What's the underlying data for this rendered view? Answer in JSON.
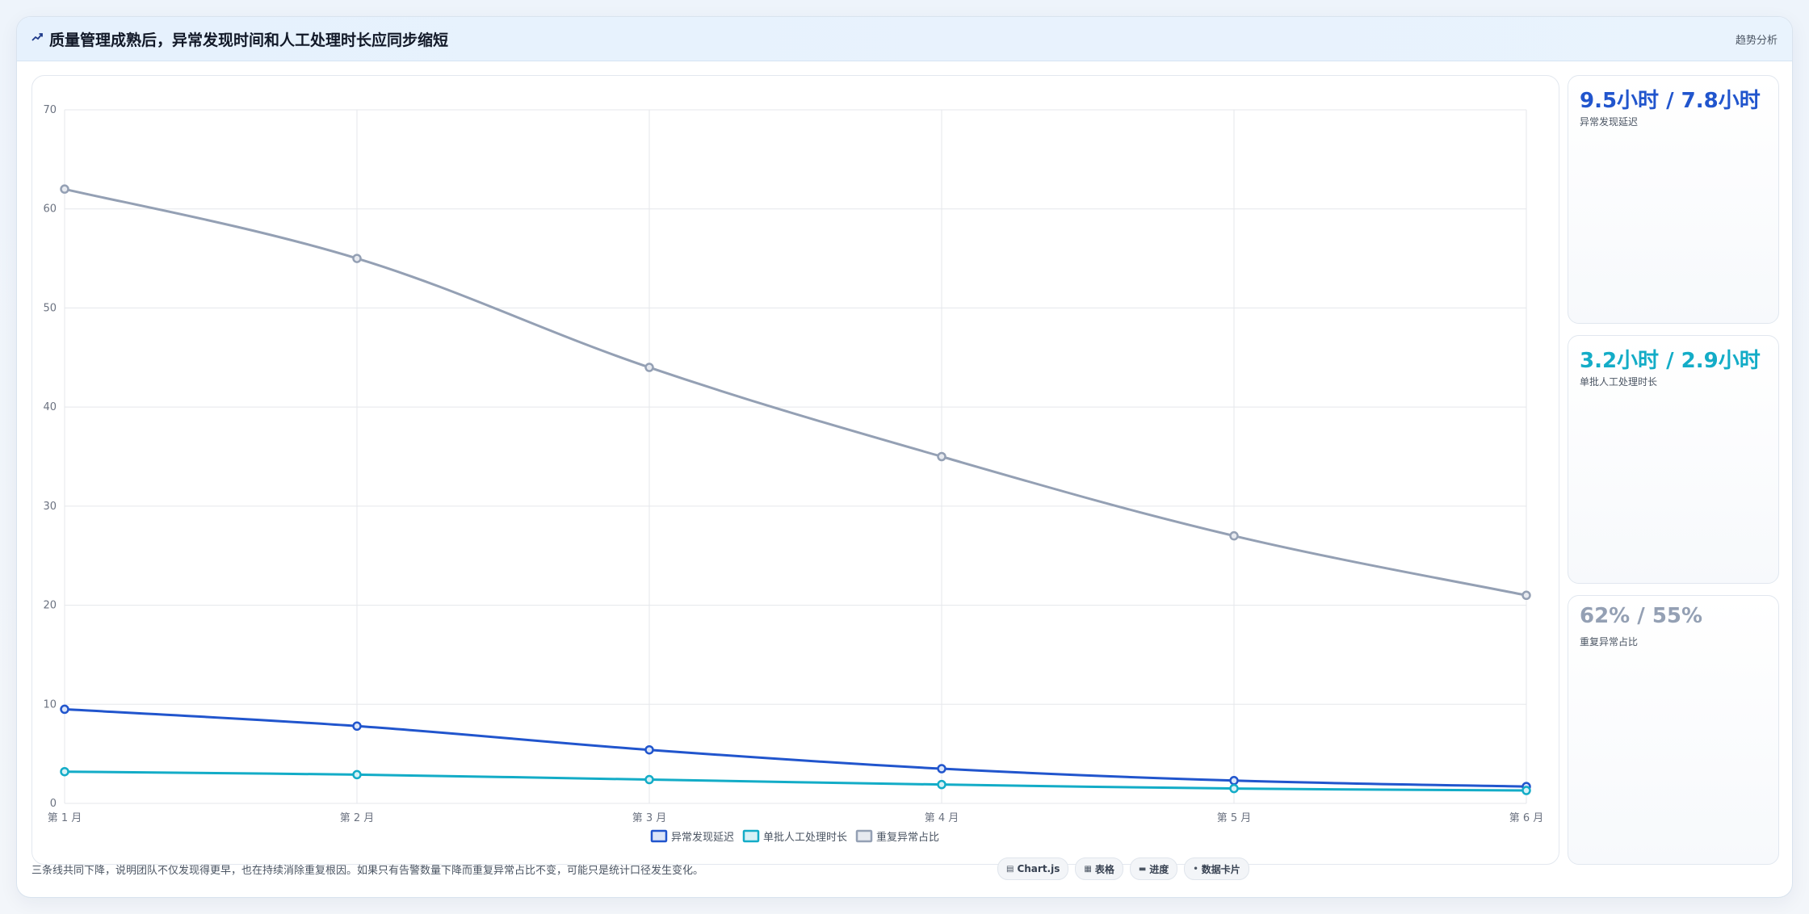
{
  "header": {
    "title": "质量管理成熟后，异常发现时间和人工处理时长应同步缩短",
    "action_label": "趋势分析",
    "icon": "trend-icon"
  },
  "stats": [
    {
      "value": "9.5小时 / 7.8小时",
      "label": "异常发现延迟",
      "color": "#2155cd"
    },
    {
      "value": "3.2小时 / 2.9小时",
      "label": "单批人工处理时长",
      "color": "#13acc7"
    },
    {
      "value": "62% / 55%",
      "label": "重复异常占比",
      "color": "#94a0b4"
    }
  ],
  "footnote": "三条线共同下降，说明团队不仅发现得更早，也在持续消除重复根因。如果只有告警数量下降而重复异常占比不变，可能只是统计口径发生变化。",
  "badges": [
    {
      "label": "Chart.js",
      "icon": "chart-icon"
    },
    {
      "label": "表格",
      "icon": "table-icon"
    },
    {
      "label": "进度",
      "icon": "progress-icon"
    },
    {
      "label": "数据卡片",
      "icon": "card-icon"
    }
  ],
  "chart_data": {
    "type": "line",
    "categories": [
      "第 1 月",
      "第 2 月",
      "第 3 月",
      "第 4 月",
      "第 5 月",
      "第 6 月"
    ],
    "ylim": [
      0,
      70
    ],
    "yticks": [
      "0",
      "10",
      "20",
      "30",
      "40",
      "50",
      "60",
      "70"
    ],
    "grid": true,
    "legend_position": "bottom",
    "series": [
      {
        "name": "异常发现延迟",
        "color": "#2155cd",
        "fill": "#dbe5f8",
        "values": [
          9.5,
          7.8,
          5.4,
          3.5,
          2.3,
          1.7
        ]
      },
      {
        "name": "单批人工处理时长",
        "color": "#13acc7",
        "fill": "#d7f1f6",
        "values": [
          3.2,
          2.9,
          2.4,
          1.9,
          1.5,
          1.3
        ]
      },
      {
        "name": "重复异常占比",
        "color": "#94a0b4",
        "fill": "#e7eaf0",
        "values": [
          62,
          55,
          44,
          35,
          27,
          21
        ]
      }
    ]
  }
}
